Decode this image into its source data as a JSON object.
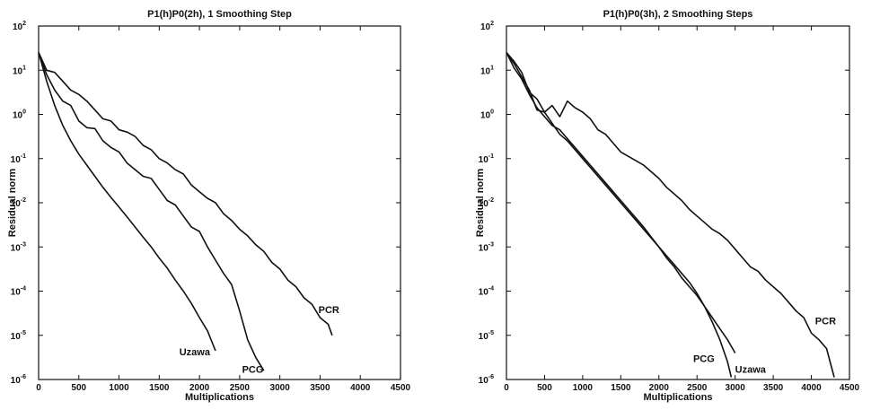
{
  "chart_data": [
    {
      "type": "line",
      "title": "P1(h)P0(2h), 1 Smoothing Step",
      "xlabel": "Multiplications",
      "ylabel": "Residual norm",
      "xlim": [
        0,
        4500
      ],
      "ylim_log10": [
        -6,
        2
      ],
      "y_scale": "log",
      "grid": false,
      "x_ticks": [
        "0",
        "500",
        "1000",
        "1500",
        "2000",
        "2500",
        "3000",
        "3500",
        "4000",
        "4500"
      ],
      "y_ticks": [
        {
          "exp": -6,
          "label": "10",
          "sup": "-6"
        },
        {
          "exp": -5,
          "label": "10",
          "sup": "-5"
        },
        {
          "exp": -4,
          "label": "10",
          "sup": "-4"
        },
        {
          "exp": -3,
          "label": "10",
          "sup": "-3"
        },
        {
          "exp": -2,
          "label": "10",
          "sup": "-2"
        },
        {
          "exp": -1,
          "label": "10",
          "sup": "-1"
        },
        {
          "exp": 0,
          "label": "10",
          "sup": "0"
        },
        {
          "exp": 1,
          "label": "10",
          "sup": "1"
        },
        {
          "exp": 2,
          "label": "10",
          "sup": "2"
        }
      ],
      "series": [
        {
          "name": "Uzawa",
          "label_pos": [
            1750,
            -5.45
          ],
          "x": [
            0,
            100,
            200,
            300,
            400,
            500,
            600,
            700,
            800,
            900,
            1000,
            1100,
            1200,
            1300,
            1400,
            1500,
            1600,
            1700,
            1800,
            1900,
            2000,
            2100,
            2200
          ],
          "log10y": [
            1.4,
            0.75,
            0.2,
            -0.25,
            -0.6,
            -0.9,
            -1.15,
            -1.4,
            -1.65,
            -1.88,
            -2.1,
            -2.32,
            -2.55,
            -2.78,
            -3.0,
            -3.25,
            -3.48,
            -3.75,
            -4.0,
            -4.28,
            -4.6,
            -4.9,
            -5.35
          ]
        },
        {
          "name": "PCG",
          "label_pos": [
            2530,
            -5.85
          ],
          "x": [
            0,
            100,
            200,
            300,
            400,
            500,
            600,
            700,
            800,
            900,
            1000,
            1100,
            1200,
            1300,
            1400,
            1500,
            1600,
            1700,
            1800,
            1900,
            2000,
            2100,
            2200,
            2300,
            2400,
            2500,
            2600,
            2700,
            2800
          ],
          "log10y": [
            1.4,
            0.9,
            0.55,
            0.3,
            0.2,
            -0.15,
            -0.3,
            -0.32,
            -0.6,
            -0.75,
            -0.85,
            -1.1,
            -1.25,
            -1.4,
            -1.45,
            -1.7,
            -1.95,
            -2.05,
            -2.3,
            -2.55,
            -2.65,
            -3.0,
            -3.3,
            -3.6,
            -3.85,
            -4.45,
            -5.1,
            -5.5,
            -5.8
          ]
        },
        {
          "name": "PCR",
          "label_pos": [
            3480,
            -4.5
          ],
          "x": [
            0,
            100,
            200,
            300,
            400,
            500,
            600,
            700,
            800,
            900,
            1000,
            1100,
            1200,
            1300,
            1400,
            1500,
            1600,
            1700,
            1800,
            1900,
            2000,
            2100,
            2200,
            2300,
            2400,
            2500,
            2600,
            2700,
            2800,
            2900,
            3000,
            3100,
            3200,
            3300,
            3400,
            3500,
            3600,
            3650
          ],
          "log10y": [
            1.4,
            1.0,
            0.95,
            0.75,
            0.55,
            0.45,
            0.3,
            0.1,
            -0.1,
            -0.15,
            -0.35,
            -0.4,
            -0.5,
            -0.7,
            -0.8,
            -1.0,
            -1.1,
            -1.25,
            -1.35,
            -1.6,
            -1.75,
            -1.9,
            -2.0,
            -2.25,
            -2.4,
            -2.6,
            -2.75,
            -2.95,
            -3.1,
            -3.35,
            -3.5,
            -3.75,
            -3.9,
            -4.15,
            -4.3,
            -4.6,
            -4.75,
            -5.0
          ]
        }
      ]
    },
    {
      "type": "line",
      "title": "P1(h)P0(3h), 2 Smoothing Steps",
      "xlabel": "Multiplications",
      "ylabel": "Residual norm",
      "xlim": [
        0,
        4500
      ],
      "ylim_log10": [
        -6,
        2
      ],
      "y_scale": "log",
      "grid": false,
      "x_ticks": [
        "0",
        "500",
        "1000",
        "1500",
        "2000",
        "2500",
        "3000",
        "3500",
        "4000",
        "4500"
      ],
      "y_ticks": [
        {
          "exp": -6,
          "label": "10",
          "sup": "-6"
        },
        {
          "exp": -5,
          "label": "10",
          "sup": "-5"
        },
        {
          "exp": -4,
          "label": "10",
          "sup": "-4"
        },
        {
          "exp": -3,
          "label": "10",
          "sup": "-3"
        },
        {
          "exp": -2,
          "label": "10",
          "sup": "-2"
        },
        {
          "exp": -1,
          "label": "10",
          "sup": "-1"
        },
        {
          "exp": 0,
          "label": "10",
          "sup": "0"
        },
        {
          "exp": 1,
          "label": "10",
          "sup": "1"
        },
        {
          "exp": 2,
          "label": "10",
          "sup": "2"
        }
      ],
      "series": [
        {
          "name": "PCG",
          "label_pos": [
            2450,
            -5.6
          ],
          "x": [
            0,
            100,
            200,
            300,
            400,
            500,
            600,
            700,
            800,
            900,
            1000,
            1100,
            1200,
            1300,
            1400,
            1500,
            1600,
            1700,
            1800,
            1900,
            2000,
            2100,
            2200,
            2300,
            2400,
            2500,
            2600,
            2700,
            2800,
            2900,
            2950
          ],
          "log10y": [
            1.4,
            1.05,
            0.8,
            0.45,
            0.15,
            -0.05,
            -0.25,
            -0.35,
            -0.55,
            -0.75,
            -0.95,
            -1.15,
            -1.35,
            -1.55,
            -1.75,
            -1.95,
            -2.15,
            -2.35,
            -2.55,
            -2.78,
            -3.0,
            -3.2,
            -3.4,
            -3.6,
            -3.8,
            -4.05,
            -4.35,
            -4.7,
            -5.1,
            -5.6,
            -5.95
          ]
        },
        {
          "name": "Uzawa",
          "label_pos": [
            3000,
            -5.85
          ],
          "x": [
            0,
            100,
            200,
            300,
            400,
            500,
            600,
            700,
            800,
            900,
            1000,
            1100,
            1200,
            1300,
            1400,
            1500,
            1600,
            1700,
            1800,
            1900,
            2000,
            2100,
            2200,
            2300,
            2400,
            2500,
            2600,
            2700,
            2800,
            2900,
            3000
          ],
          "log10y": [
            1.4,
            1.15,
            0.85,
            0.55,
            0.1,
            0.05,
            -0.2,
            -0.45,
            -0.6,
            -0.8,
            -1.0,
            -1.2,
            -1.4,
            -1.6,
            -1.8,
            -2.0,
            -2.2,
            -2.4,
            -2.6,
            -2.8,
            -3.0,
            -3.25,
            -3.45,
            -3.7,
            -3.9,
            -4.1,
            -4.35,
            -4.6,
            -4.85,
            -5.1,
            -5.4
          ]
        },
        {
          "name": "PCR",
          "label_pos": [
            4050,
            -4.75
          ],
          "x": [
            0,
            100,
            200,
            300,
            400,
            500,
            600,
            700,
            800,
            900,
            1000,
            1100,
            1200,
            1300,
            1400,
            1500,
            1600,
            1700,
            1800,
            1900,
            2000,
            2100,
            2200,
            2300,
            2400,
            2500,
            2600,
            2700,
            2800,
            2900,
            3000,
            3100,
            3200,
            3300,
            3400,
            3500,
            3600,
            3700,
            3800,
            3900,
            4000,
            4100,
            4200,
            4300
          ],
          "log10y": [
            1.4,
            1.2,
            0.95,
            0.5,
            0.35,
            0.05,
            0.2,
            -0.05,
            0.3,
            0.15,
            0.05,
            -0.1,
            -0.35,
            -0.45,
            -0.65,
            -0.85,
            -0.95,
            -1.05,
            -1.15,
            -1.3,
            -1.45,
            -1.65,
            -1.8,
            -1.95,
            -2.15,
            -2.3,
            -2.45,
            -2.6,
            -2.7,
            -2.85,
            -3.05,
            -3.25,
            -3.45,
            -3.55,
            -3.75,
            -3.9,
            -4.05,
            -4.25,
            -4.45,
            -4.6,
            -4.95,
            -5.1,
            -5.3,
            -5.95
          ]
        }
      ]
    }
  ]
}
